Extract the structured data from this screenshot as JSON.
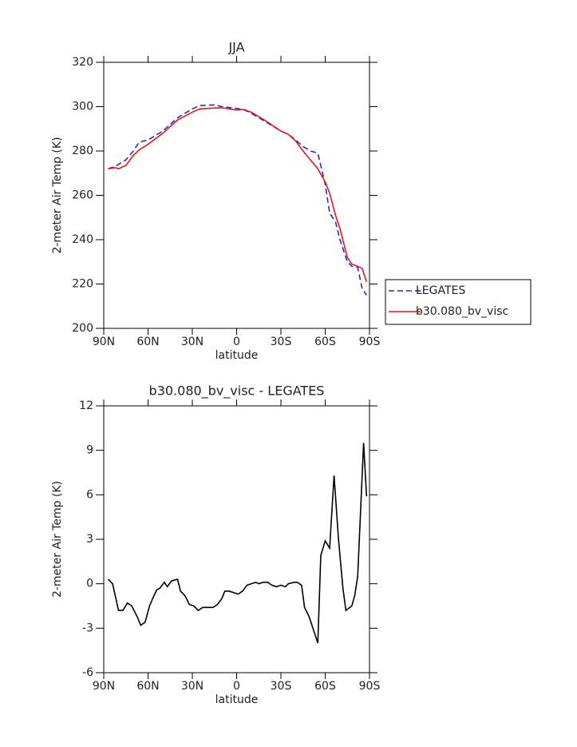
{
  "chart_data": [
    {
      "type": "line",
      "title": "JJA",
      "xlabel": "latitude",
      "ylabel": "2-meter Air Temp (K)",
      "x": [
        87,
        82,
        80,
        75,
        70,
        66,
        60,
        50,
        40,
        30,
        25,
        15,
        10,
        0,
        -5,
        -10,
        -20,
        -30,
        -35,
        -40,
        -45,
        -50,
        -55,
        -60,
        -63,
        -67,
        -70,
        -75,
        -78,
        -82,
        -85,
        -88
      ],
      "series": [
        {
          "name": "LEGATES",
          "color": "#1f2fd0",
          "dash": "dashed",
          "values": [
            272,
            273,
            274,
            276,
            280,
            284,
            285,
            289,
            295,
            299,
            300.5,
            300.8,
            300,
            299.2,
            298.6,
            297,
            293,
            289,
            287.5,
            285,
            282,
            280,
            279,
            265,
            252,
            248,
            240,
            230,
            228,
            227.5,
            218,
            215
          ]
        },
        {
          "name": "b30.080_bv_visc",
          "color": "#e8151b",
          "dash": "solid",
          "values": [
            272,
            272.5,
            272,
            273.5,
            278,
            280.5,
            283,
            288,
            294,
            297.5,
            299,
            299.4,
            299.5,
            298.5,
            298.7,
            297.5,
            293.5,
            289,
            287.5,
            284.5,
            280,
            276,
            272,
            266,
            261,
            251,
            245,
            232,
            229,
            228,
            227,
            221
          ]
        }
      ],
      "xlim": [
        90,
        -90
      ],
      "xticks": [
        {
          "value": 90,
          "label": "90N"
        },
        {
          "value": 60,
          "label": "60N"
        },
        {
          "value": 30,
          "label": "30N"
        },
        0,
        {
          "value": -30,
          "label": "30S"
        },
        {
          "value": -60,
          "label": "60S"
        },
        {
          "value": -90,
          "label": "90S"
        }
      ],
      "ylim": [
        200,
        320
      ],
      "yticks": [
        200,
        220,
        240,
        260,
        280,
        300,
        320
      ],
      "legend": "right"
    },
    {
      "type": "line",
      "title": "b30.080_bv_visc - LEGATES",
      "xlabel": "latitude",
      "ylabel": "2-meter Air Temp (K)",
      "x": [
        87,
        84,
        80,
        77,
        74,
        71,
        67,
        65,
        62,
        59,
        56,
        54,
        52,
        49,
        47,
        44,
        40,
        38,
        35,
        32,
        29,
        26,
        23,
        20,
        16,
        13,
        10,
        8,
        5,
        2,
        -1,
        -4,
        -7,
        -10,
        -13,
        -15,
        -18,
        -21,
        -24,
        -27,
        -30,
        -33,
        -35,
        -39,
        -41,
        -44,
        -46,
        -49,
        -55,
        -57,
        -60,
        -63,
        -66,
        -69,
        -72,
        -74,
        -78,
        -80,
        -82,
        -86,
        -88
      ],
      "series": [
        {
          "color": "#000000",
          "dash": "solid",
          "values": [
            0.3,
            0,
            -1.8,
            -1.8,
            -1.3,
            -1.5,
            -2.3,
            -2.8,
            -2.6,
            -1.5,
            -0.8,
            -0.4,
            -0.3,
            0.1,
            -0.2,
            0.2,
            0.3,
            -0.5,
            -0.8,
            -1.4,
            -1.5,
            -1.8,
            -1.6,
            -1.6,
            -1.6,
            -1.4,
            -1,
            -0.5,
            -0.5,
            -0.6,
            -0.7,
            -0.5,
            -0.1,
            0,
            0.1,
            0,
            0.1,
            0.1,
            -0.1,
            -0.2,
            -0.1,
            -0.2,
            0,
            0.1,
            0.1,
            -0.1,
            -1.6,
            -2.2,
            -4,
            1.9,
            2.9,
            2.4,
            7.3,
            3,
            -0.3,
            -1.8,
            -1.5,
            -0.8,
            0.5,
            9.5,
            5.9
          ]
        }
      ],
      "xlim": [
        90,
        -90
      ],
      "xticks": [
        {
          "value": 90,
          "label": "90N"
        },
        {
          "value": 60,
          "label": "60N"
        },
        {
          "value": 30,
          "label": "30N"
        },
        0,
        {
          "value": -30,
          "label": "30S"
        },
        {
          "value": -60,
          "label": "60S"
        },
        {
          "value": -90,
          "label": "90S"
        }
      ],
      "ylim": [
        -6,
        12
      ],
      "yticks": [
        -6,
        -3,
        0,
        3,
        6,
        9,
        12
      ]
    }
  ]
}
